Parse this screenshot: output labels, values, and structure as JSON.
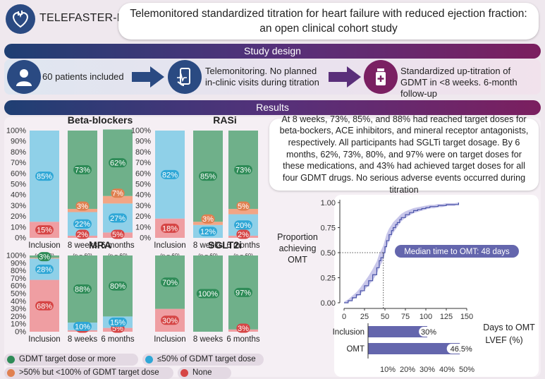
{
  "header": {
    "brand": "TELEFASTER-HF",
    "title": "Telemonitored standardized titration for heart failure with reduced ejection fraction: an open clinical cohort study"
  },
  "study_design": {
    "banner": "Study design",
    "steps": [
      {
        "icon": "person-icon",
        "text": "60 patients included"
      },
      {
        "icon": "phone-monitor-icon",
        "text": "Telemonitoring. No planned in-clinic visits during titration"
      },
      {
        "icon": "medication-bottle-icon",
        "text": "Standardized up-titration of GDMT in <8 weeks. 6-month follow-up"
      }
    ]
  },
  "results": {
    "banner": "Results",
    "summary": "At 8 weeks, 73%, 85%, and 88% had reached target doses for beta-bockers, ACE inhibitors, and mineral receptor antagonists, respectively. All participants had SGLTi target dosage. By 6 months, 62%, 73%, 80%, and 97% were on target doses for these medications, and 43% had achieved target doses for all four GDMT drugs. No serious adverse events occurred during titration"
  },
  "colors": {
    "target": "#6fb08a",
    "le50": "#8fd0e8",
    "gt50": "#f2a585",
    "none": "#ef9ea2",
    "target_label": "#2e8b57",
    "le50_label": "#2fa7d6",
    "gt50_label": "#e08050",
    "none_label": "#d64545",
    "km_line": "#4a54a8",
    "km_band": "#c8c6ea",
    "lvef_bar": "#6466ad"
  },
  "chart_data": [
    {
      "type": "bar",
      "title": "Beta-blockers",
      "categories": [
        "Inclusion",
        "8 weeks",
        "6 months"
      ],
      "ylim": [
        0,
        100
      ],
      "yticks": [
        "0%",
        "10%",
        "20%",
        "30%",
        "40%",
        "50%",
        "60%",
        "70%",
        "80%",
        "90%",
        "100%"
      ],
      "series": [
        {
          "name": "None",
          "values": [
            15,
            2,
            5
          ],
          "labels": [
            "15%",
            "2%",
            "5%"
          ]
        },
        {
          "name": "≤50% of GDMT target dose",
          "values": [
            85,
            22,
            27
          ],
          "labels": [
            "85%",
            "22%",
            "27%"
          ]
        },
        {
          "name": ">50% but <100% of GDMT target dose",
          "values": [
            0,
            3,
            7
          ],
          "labels": [
            "",
            "3%",
            "7%"
          ]
        },
        {
          "name": "GDMT target dose or more",
          "values": [
            0,
            73,
            62
          ],
          "labels": [
            "",
            "73%",
            "62%"
          ]
        }
      ],
      "n_labels": [
        "(n = 60)",
        "(n = 60)",
        "(n = 60)"
      ]
    },
    {
      "type": "bar",
      "title": "RASi",
      "categories": [
        "Inclusion",
        "8 weeks",
        "6 months"
      ],
      "ylim": [
        0,
        100
      ],
      "yticks": [
        "0%",
        "10%",
        "20%",
        "30%",
        "40%",
        "50%",
        "60%",
        "70%",
        "80%",
        "90%",
        "100%"
      ],
      "series": [
        {
          "name": "None",
          "values": [
            18,
            0,
            2
          ],
          "labels": [
            "18%",
            "",
            "2%"
          ]
        },
        {
          "name": "≤50% of GDMT target dose",
          "values": [
            82,
            12,
            20
          ],
          "labels": [
            "82%",
            "12%",
            "20%"
          ]
        },
        {
          "name": ">50% but <100% of GDMT target dose",
          "values": [
            0,
            3,
            5
          ],
          "labels": [
            "",
            "3%",
            "5%"
          ]
        },
        {
          "name": "GDMT target dose or more",
          "values": [
            0,
            85,
            73
          ],
          "labels": [
            "",
            "85%",
            "73%"
          ]
        }
      ],
      "n_labels": [
        "(n = 60)",
        "(n = 60)",
        "(n = 60)"
      ]
    },
    {
      "type": "bar",
      "title": "MRA",
      "categories": [
        "Inclusion",
        "8 weeks",
        "6 months"
      ],
      "ylim": [
        0,
        100
      ],
      "yticks": [
        "0%",
        "10%",
        "20%",
        "30%",
        "40%",
        "50%",
        "60%",
        "70%",
        "80%",
        "90%",
        "100%"
      ],
      "series": [
        {
          "name": "None",
          "values": [
            68,
            2,
            5
          ],
          "labels": [
            "68%",
            "2%",
            "5%"
          ]
        },
        {
          "name": "≤50% of GDMT target dose",
          "values": [
            28,
            10,
            15
          ],
          "labels": [
            "28%",
            "10%",
            "15%"
          ]
        },
        {
          "name": ">50% but <100% of GDMT target dose",
          "values": [
            1,
            0,
            0
          ],
          "labels": [
            "",
            "",
            ""
          ]
        },
        {
          "name": "GDMT target dose or more",
          "values": [
            3,
            88,
            80
          ],
          "labels": [
            "3%",
            "88%",
            "80%"
          ]
        }
      ]
    },
    {
      "type": "bar",
      "title": "SGLT2i",
      "categories": [
        "Inclusion",
        "8 weeks",
        "6 months"
      ],
      "ylim": [
        0,
        100
      ],
      "series": [
        {
          "name": "None",
          "values": [
            30,
            0,
            3
          ],
          "labels": [
            "30%",
            "",
            "3%"
          ]
        },
        {
          "name": "≤50% of GDMT target dose",
          "values": [
            0,
            0,
            0
          ],
          "labels": [
            "",
            "",
            ""
          ]
        },
        {
          "name": ">50% but <100% of GDMT target dose",
          "values": [
            0,
            0,
            0
          ],
          "labels": [
            "",
            "",
            ""
          ]
        },
        {
          "name": "GDMT target dose or more",
          "values": [
            70,
            100,
            97
          ],
          "labels": [
            "70%",
            "100%",
            "97%"
          ]
        }
      ]
    },
    {
      "type": "line",
      "title": "Proportion achieving OMT",
      "ylabel": "Proportion achieving OMT",
      "xlabel": "Days to OMT",
      "xlim": [
        0,
        150
      ],
      "ylim": [
        0,
        1
      ],
      "xticks": [
        "0",
        "25",
        "50",
        "75",
        "100",
        "125",
        "150"
      ],
      "yticks": [
        "0.00",
        "0.25",
        "0.50",
        "0.75",
        "1.00"
      ],
      "annotation": "Median time to OMT: 48 days",
      "median": 48,
      "x": [
        0,
        5,
        10,
        15,
        20,
        25,
        30,
        35,
        40,
        43,
        45,
        48,
        50,
        52,
        55,
        58,
        60,
        63,
        65,
        68,
        70,
        75,
        80,
        85,
        90,
        95,
        100,
        105,
        110,
        115,
        120,
        125,
        130,
        135,
        140
      ],
      "y": [
        0.0,
        0.02,
        0.05,
        0.08,
        0.12,
        0.17,
        0.22,
        0.28,
        0.35,
        0.42,
        0.45,
        0.5,
        0.56,
        0.62,
        0.68,
        0.72,
        0.75,
        0.78,
        0.8,
        0.83,
        0.85,
        0.88,
        0.9,
        0.92,
        0.93,
        0.94,
        0.95,
        0.96,
        0.96,
        0.97,
        0.97,
        0.98,
        0.98,
        0.98,
        1.0
      ]
    },
    {
      "type": "bar",
      "orientation": "horizontal",
      "title": "LVEF (%)",
      "categories": [
        "Inclusion",
        "OMT"
      ],
      "values": [
        30,
        46.5
      ],
      "labels": [
        "30%",
        "46.5%"
      ],
      "xticks": [
        "10%",
        "20%",
        "30%",
        "40%",
        "50%"
      ],
      "xlim": [
        0,
        55
      ]
    }
  ],
  "legend": [
    {
      "key": "target",
      "label": "GDMT target dose or more"
    },
    {
      "key": "le50",
      "label": "≤50% of GDMT target dose"
    },
    {
      "key": "gt50",
      "label": ">50% but <100% of GDMT target dose"
    },
    {
      "key": "none",
      "label": "None"
    }
  ]
}
